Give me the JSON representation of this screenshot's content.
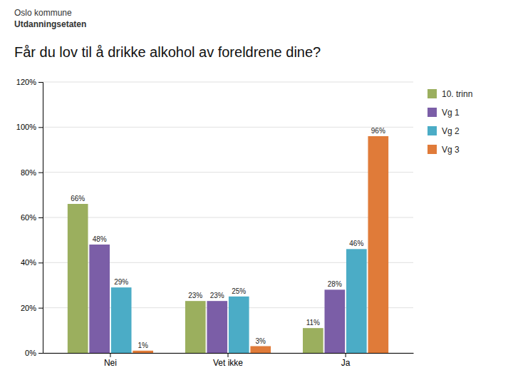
{
  "chart_data": {
    "type": "bar",
    "title": "Får du lov til å drikke alkohol av foreldrene dine?",
    "annotations": [
      "Oslo kommune",
      "Utdanningsetaten"
    ],
    "categories": [
      "Nei",
      "Vet ikke",
      "Ja"
    ],
    "series": [
      {
        "name": "10. trinn",
        "color": "#9baf5e",
        "values": [
          66,
          23,
          11
        ],
        "value_labels": [
          "66%",
          "23%",
          "11%"
        ]
      },
      {
        "name": "Vg 1",
        "color": "#7b5ea7",
        "values": [
          48,
          23,
          28
        ],
        "value_labels": [
          "48%",
          "23%",
          "28%"
        ]
      },
      {
        "name": "Vg 2",
        "color": "#4bacc6",
        "values": [
          29,
          25,
          46
        ],
        "value_labels": [
          "29%",
          "25%",
          "46%"
        ]
      },
      {
        "name": "Vg 3",
        "color": "#e07b39",
        "values": [
          1,
          3,
          96
        ],
        "value_labels": [
          "1%",
          "3%",
          "96%"
        ]
      }
    ],
    "ylim": [
      0,
      120
    ],
    "yticks": [
      {
        "value": 0,
        "label": "0%"
      },
      {
        "value": 20,
        "label": "20%"
      },
      {
        "value": 40,
        "label": "40%"
      },
      {
        "value": 60,
        "label": "60%"
      },
      {
        "value": 80,
        "label": "80%"
      },
      {
        "value": 100,
        "label": "100%"
      },
      {
        "value": 120,
        "label": "120%"
      }
    ],
    "grid": true,
    "legend": "upper right",
    "data_labels": true
  }
}
